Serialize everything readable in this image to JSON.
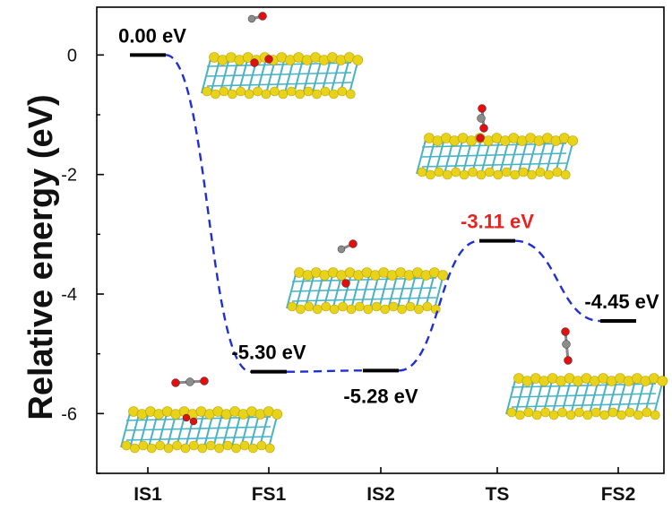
{
  "chart_data": {
    "type": "line",
    "ylabel": "Relative energy (eV)",
    "xlabel": "",
    "categories": [
      "IS1",
      "FS1",
      "IS2",
      "TS",
      "FS2"
    ],
    "ylim": [
      -7,
      0.8
    ],
    "yticks": [
      0,
      -2,
      -4,
      -6
    ],
    "ytick_labels": [
      "0",
      "-2",
      "-4",
      "-6"
    ],
    "grid": false,
    "legend": "none",
    "series": [
      {
        "values": [
          0.0,
          -5.3,
          -5.28,
          -3.11,
          -4.45
        ]
      }
    ],
    "level_labels": [
      {
        "category": "IS1",
        "text": "0.00 eV",
        "color": "#000000",
        "placement": "above"
      },
      {
        "category": "FS1",
        "text": "-5.30 eV",
        "color": "#000000",
        "placement": "above"
      },
      {
        "category": "IS2",
        "text": "-5.28 eV",
        "color": "#000000",
        "placement": "below"
      },
      {
        "category": "TS",
        "text": "-3.11 eV",
        "color": "#e8231f",
        "placement": "above"
      },
      {
        "category": "FS2",
        "text": "-4.45 eV",
        "color": "#000000",
        "placement": "above"
      }
    ],
    "colors": {
      "level": "#000000",
      "path": "#1f2fd6",
      "ts_label": "#e8231f",
      "slab_s": "#e8d21a",
      "slab_mo": "#49b3c4",
      "oxygen": "#e01010",
      "carbon": "#8c8c8c"
    }
  }
}
